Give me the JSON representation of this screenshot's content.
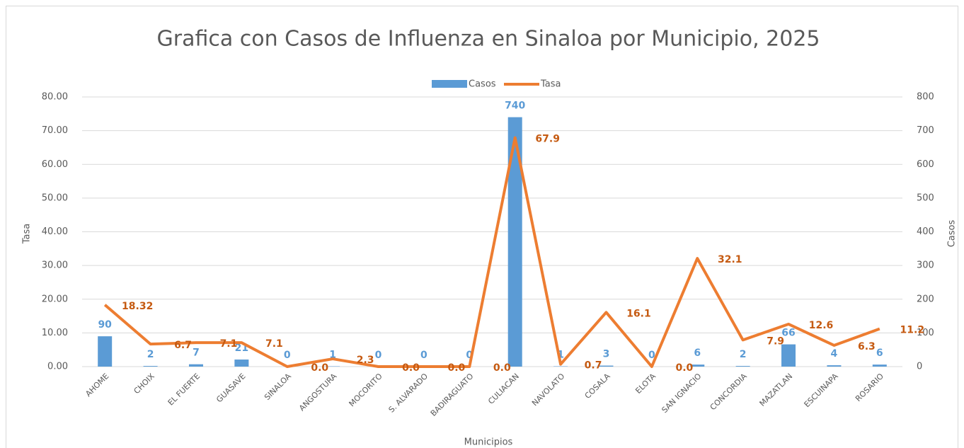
{
  "chart_data": {
    "type": "bar",
    "title": "Grafica con Casos de Influenza en Sinaloa por Municipio, 2025",
    "xlabel": "Municipios",
    "ylabel": "Tasa",
    "y2label": "Casos",
    "categories": [
      "AHOME",
      "CHOIX",
      "EL FUERTE",
      "GUASAVE",
      "SINALOA",
      "ANGOSTURA",
      "MOCORITO",
      "S. ALVARADO",
      "BADIRAGUATO",
      "CULIACAN",
      "NAVOLATO",
      "COSALA",
      "ELOTA",
      "SAN IGNACIO",
      "CONCORDIA",
      "MAZATLAN",
      "ESCUINAPA",
      "ROSARIO"
    ],
    "series": [
      {
        "name": "Casos",
        "type": "bar",
        "axis": "y2",
        "color": "#5b9bd5",
        "values": [
          90,
          2,
          7,
          21,
          0,
          1,
          0,
          0,
          0,
          740,
          1,
          3,
          0,
          6,
          2,
          66,
          4,
          6
        ]
      },
      {
        "name": "Tasa",
        "type": "line",
        "color": "#ed7d31",
        "values": [
          18.32,
          6.7,
          7.1,
          7.1,
          0.0,
          2.3,
          0.0,
          0.0,
          0.0,
          67.9,
          0.7,
          16.1,
          0.0,
          32.1,
          7.9,
          12.6,
          6.3,
          11.2
        ],
        "value_labels": [
          "18.32",
          "6.7",
          "7.1",
          "7.1",
          "0.0",
          "2.3",
          "0.0",
          "0.0",
          "0.0",
          "67.9",
          "0.7",
          "16.1",
          "0.0",
          "32.1",
          "7.9",
          "12.6",
          "6.3",
          "11.2"
        ]
      }
    ],
    "ylim": [
      0,
      80
    ],
    "yticks": [
      {
        "value": 0,
        "label": "0.00"
      },
      {
        "value": 10,
        "label": "10.00"
      },
      {
        "value": 20,
        "label": "20.00"
      },
      {
        "value": 30,
        "label": "30.00"
      },
      {
        "value": 40,
        "label": "40.00"
      },
      {
        "value": 50,
        "label": "50.00"
      },
      {
        "value": 60,
        "label": "60.00"
      },
      {
        "value": 70,
        "label": "70.00"
      },
      {
        "value": 80,
        "label": "80.00"
      }
    ],
    "y2lim": [
      0,
      800
    ],
    "y2ticks": [
      0,
      100,
      200,
      300,
      400,
      500,
      600,
      700,
      800
    ],
    "grid": true,
    "legend": "top"
  }
}
